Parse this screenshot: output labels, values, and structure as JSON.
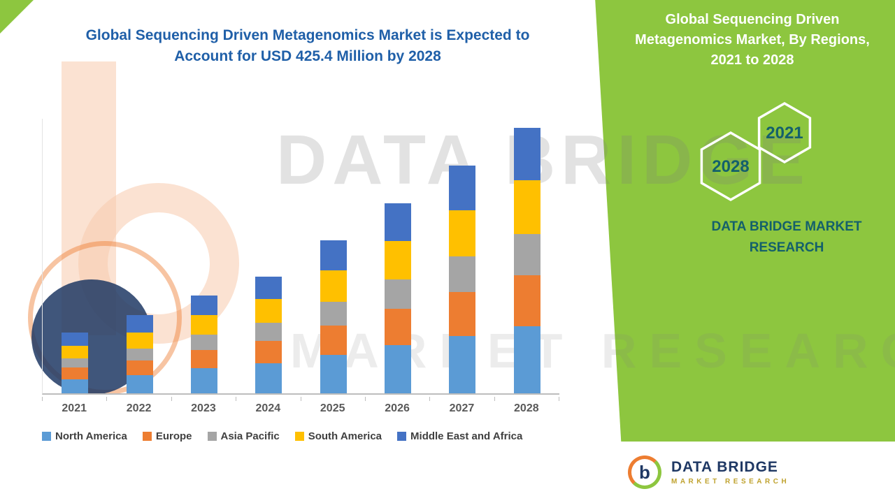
{
  "title": {
    "line1": "Global Sequencing Driven Metagenomics Market is Expected to",
    "line2": "Account for USD 425.4 Million by 2028"
  },
  "side_panel": {
    "heading_line1": "Global Sequencing Driven",
    "heading_line2": "Metagenomics Market,  By Regions,",
    "heading_line3": "2021 to 2028",
    "hex_year_front": "2021",
    "hex_year_back": "2028",
    "brand_line1": "DATA BRIDGE MARKET",
    "brand_line2": "RESEARCH",
    "bg_color": "#8DC63F",
    "brand_text_color": "#14606B"
  },
  "watermark": {
    "line1": "DATA BRIDGE",
    "line2": "MARKET RESEARCH"
  },
  "footer_logo": {
    "monogram": "b",
    "name": "DATA BRIDGE",
    "subtitle": "MARKET RESEARCH"
  },
  "chart_data": {
    "type": "bar",
    "stacked": true,
    "title": "Global Sequencing Driven Metagenomics Market is Expected to Account for USD 425.4 Million by 2028",
    "categories": [
      "2021",
      "2022",
      "2023",
      "2024",
      "2025",
      "2026",
      "2027",
      "2028"
    ],
    "series": [
      {
        "name": "North America",
        "color": "#5B9BD5",
        "values": [
          22,
          29,
          40,
          48,
          62,
          77,
          92,
          107
        ]
      },
      {
        "name": "Europe",
        "color": "#ED7D31",
        "values": [
          19,
          24,
          30,
          36,
          47,
          58,
          70,
          82
        ]
      },
      {
        "name": "Asia Pacific",
        "color": "#A5A5A5",
        "values": [
          15,
          19,
          24,
          29,
          38,
          47,
          57,
          66
        ]
      },
      {
        "name": "South America",
        "color": "#FFC000",
        "values": [
          20,
          26,
          32,
          38,
          50,
          62,
          74,
          86
        ]
      },
      {
        "name": "Middle East and Africa",
        "color": "#4472C4",
        "values": [
          21,
          28,
          31,
          36,
          48,
          60,
          72,
          84.4
        ]
      }
    ],
    "xlabel": "",
    "ylabel": "",
    "ylim": [
      0,
      440
    ],
    "grid": false,
    "legend_position": "bottom",
    "total_2028_label": "USD 425.4 Million"
  }
}
